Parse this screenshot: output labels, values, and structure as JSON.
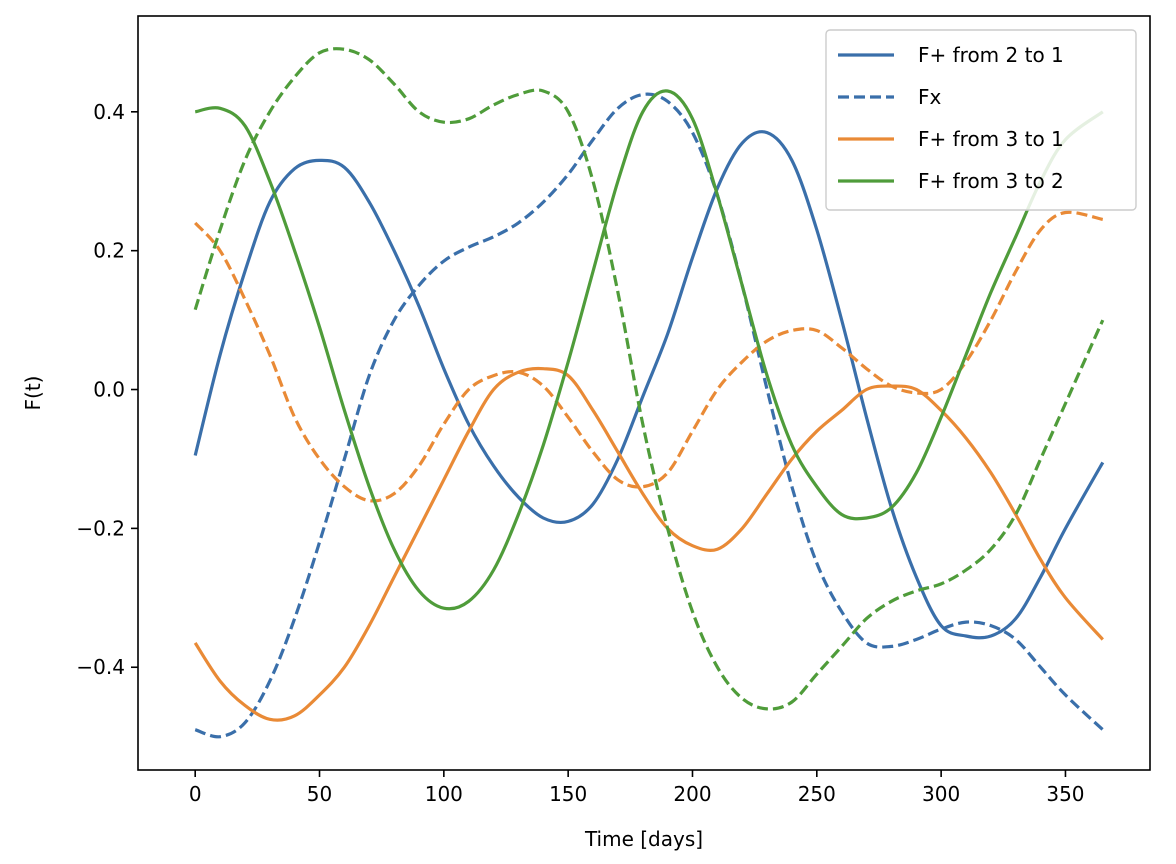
{
  "chart_data": {
    "type": "line",
    "xlabel": "Time [days]",
    "ylabel": "F(t)",
    "xlim": [
      -23,
      384
    ],
    "ylim": [
      -0.548,
      0.538
    ],
    "xticks": [
      0,
      50,
      100,
      150,
      200,
      250,
      300,
      350
    ],
    "yticks": [
      -0.4,
      -0.2,
      0.0,
      0.2,
      0.4
    ],
    "ytick_labels": [
      "−0.4",
      "−0.2",
      "0.0",
      "0.2",
      "0.4"
    ],
    "grid": false,
    "legend_position": "top-right",
    "x": [
      0,
      10,
      20,
      30,
      40,
      50,
      60,
      70,
      80,
      90,
      100,
      110,
      120,
      130,
      140,
      150,
      160,
      170,
      180,
      190,
      200,
      210,
      220,
      230,
      240,
      250,
      260,
      270,
      280,
      290,
      300,
      310,
      320,
      330,
      340,
      350,
      365
    ],
    "series": [
      {
        "name": "F+ from 2 to 1",
        "legend": true,
        "color": "#3a6faa",
        "dash": "solid",
        "values": [
          -0.095,
          0.05,
          0.17,
          0.27,
          0.318,
          0.33,
          0.32,
          0.27,
          0.2,
          0.12,
          0.03,
          -0.05,
          -0.11,
          -0.155,
          -0.185,
          -0.19,
          -0.165,
          -0.1,
          -0.01,
          0.08,
          0.19,
          0.29,
          0.355,
          0.37,
          0.33,
          0.23,
          0.1,
          -0.04,
          -0.17,
          -0.27,
          -0.34,
          -0.355,
          -0.355,
          -0.33,
          -0.27,
          -0.2,
          -0.105
        ]
      },
      {
        "name": "Fx",
        "legend": true,
        "color": "#3a6faa",
        "dash": "dashed",
        "values": [
          -0.49,
          -0.5,
          -0.48,
          -0.42,
          -0.33,
          -0.22,
          -0.1,
          0.02,
          0.1,
          0.15,
          0.185,
          0.205,
          0.22,
          0.24,
          0.27,
          0.31,
          0.36,
          0.405,
          0.425,
          0.415,
          0.37,
          0.28,
          0.15,
          0.0,
          -0.14,
          -0.25,
          -0.32,
          -0.365,
          -0.37,
          -0.36,
          -0.345,
          -0.335,
          -0.34,
          -0.36,
          -0.4,
          -0.44,
          -0.49
        ]
      },
      {
        "name": "F+ from 3 to 1",
        "legend": true,
        "color": "#e98a36",
        "dash": "solid",
        "values": [
          -0.365,
          -0.42,
          -0.455,
          -0.475,
          -0.47,
          -0.44,
          -0.4,
          -0.34,
          -0.27,
          -0.2,
          -0.13,
          -0.06,
          0.0,
          0.025,
          0.03,
          0.02,
          -0.03,
          -0.09,
          -0.15,
          -0.2,
          -0.225,
          -0.23,
          -0.2,
          -0.15,
          -0.1,
          -0.06,
          -0.03,
          0.0,
          0.005,
          0.0,
          -0.03,
          -0.07,
          -0.12,
          -0.18,
          -0.245,
          -0.3,
          -0.36
        ]
      },
      {
        "name": "F+ from 3 to 1 (dashed)",
        "legend": false,
        "color": "#e98a36",
        "dash": "dashed",
        "values": [
          0.24,
          0.2,
          0.13,
          0.05,
          -0.04,
          -0.1,
          -0.14,
          -0.16,
          -0.15,
          -0.11,
          -0.05,
          0.0,
          0.02,
          0.025,
          0.005,
          -0.04,
          -0.09,
          -0.13,
          -0.14,
          -0.12,
          -0.06,
          0.0,
          0.04,
          0.07,
          0.085,
          0.085,
          0.06,
          0.03,
          0.005,
          -0.005,
          0.0,
          0.04,
          0.1,
          0.17,
          0.23,
          0.255,
          0.245
        ]
      },
      {
        "name": "F+ from 3 to 2",
        "legend": true,
        "color": "#4f9c3a",
        "dash": "solid",
        "values": [
          0.4,
          0.405,
          0.38,
          0.3,
          0.2,
          0.09,
          -0.03,
          -0.14,
          -0.23,
          -0.29,
          -0.315,
          -0.305,
          -0.26,
          -0.18,
          -0.08,
          0.04,
          0.17,
          0.3,
          0.4,
          0.43,
          0.39,
          0.28,
          0.15,
          0.02,
          -0.08,
          -0.14,
          -0.18,
          -0.185,
          -0.17,
          -0.12,
          -0.04,
          0.05,
          0.14,
          0.22,
          0.3,
          0.36,
          0.4
        ]
      },
      {
        "name": "F+ from 3 to 2 (dashed)",
        "legend": false,
        "color": "#4f9c3a",
        "dash": "dashed",
        "values": [
          0.115,
          0.23,
          0.33,
          0.4,
          0.45,
          0.485,
          0.49,
          0.475,
          0.44,
          0.4,
          0.385,
          0.39,
          0.41,
          0.425,
          0.43,
          0.4,
          0.3,
          0.14,
          -0.05,
          -0.2,
          -0.32,
          -0.4,
          -0.445,
          -0.46,
          -0.45,
          -0.41,
          -0.37,
          -0.33,
          -0.305,
          -0.29,
          -0.28,
          -0.26,
          -0.23,
          -0.18,
          -0.1,
          -0.02,
          0.1
        ]
      }
    ]
  }
}
